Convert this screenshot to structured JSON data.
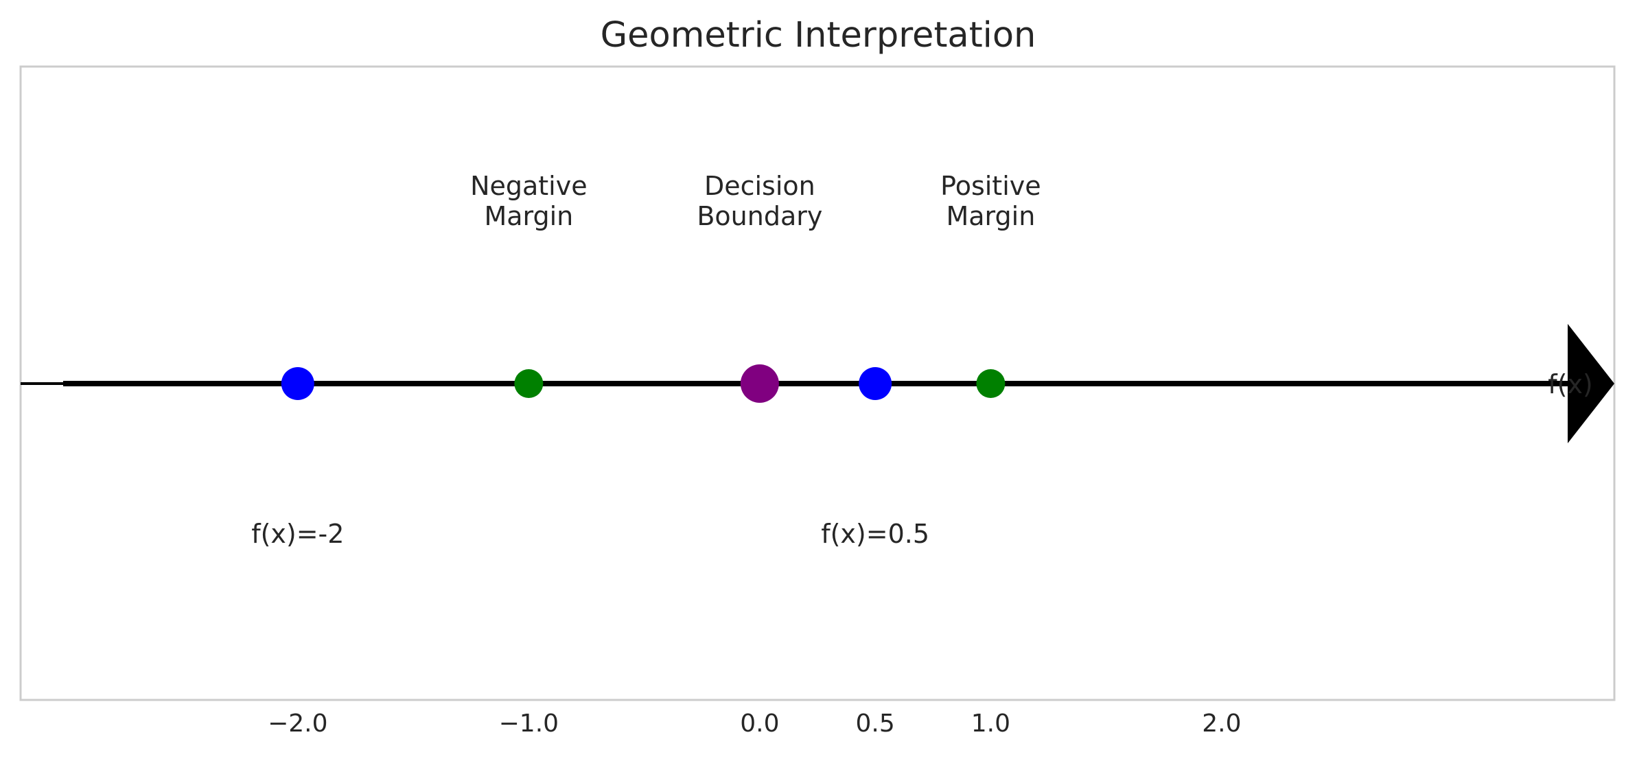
{
  "chart_data": {
    "type": "scatter",
    "title": "Geometric Interpretation",
    "xlabel": "",
    "ylabel": "",
    "xlim": [
      -3.2,
      3.7
    ],
    "ylim": [
      -1.5,
      1.5
    ],
    "grid": false,
    "x_ticks": [
      {
        "value": -2.0,
        "label": "−2.0"
      },
      {
        "value": -1.0,
        "label": "−1.0"
      },
      {
        "value": 0.0,
        "label": "0.0"
      },
      {
        "value": 0.5,
        "label": "0.5"
      },
      {
        "value": 1.0,
        "label": "1.0"
      },
      {
        "value": 2.0,
        "label": "2.0"
      }
    ],
    "axis_arrow": {
      "label": "f(x)",
      "color": "#000000"
    },
    "points": [
      {
        "x": -2.0,
        "y": 0,
        "color": "#0000ff",
        "size": "medium"
      },
      {
        "x": -1.0,
        "y": 0,
        "color": "#008000",
        "size": "small"
      },
      {
        "x": 0.0,
        "y": 0,
        "color": "#800080",
        "size": "large"
      },
      {
        "x": 0.5,
        "y": 0,
        "color": "#0000ff",
        "size": "medium"
      },
      {
        "x": 1.0,
        "y": 0,
        "color": "#008000",
        "size": "small"
      }
    ],
    "annotations_above": [
      {
        "x": -1.0,
        "lines": [
          "Negative",
          "Margin"
        ]
      },
      {
        "x": 0.0,
        "lines": [
          "Decision",
          "Boundary"
        ]
      },
      {
        "x": 1.0,
        "lines": [
          "Positive",
          "Margin"
        ]
      }
    ],
    "annotations_below": [
      {
        "x": -2.0,
        "text": "f(x)=-2"
      },
      {
        "x": 0.5,
        "text": "f(x)=0.5"
      }
    ],
    "frame_color": "#cccccc"
  }
}
